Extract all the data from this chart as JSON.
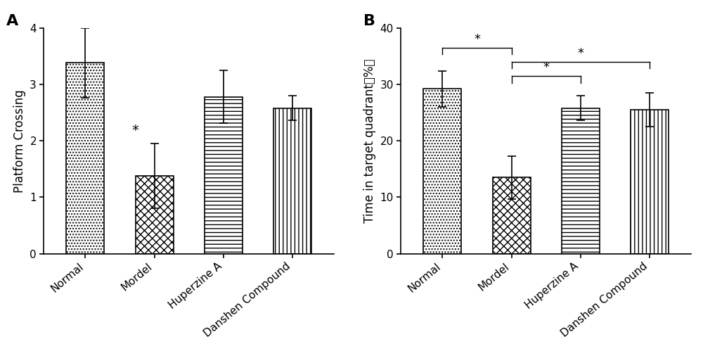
{
  "panel_A": {
    "categories": [
      "Normal",
      "Mordel",
      "Huperzine A",
      "Danshen Compound"
    ],
    "values": [
      3.38,
      1.38,
      2.78,
      2.58
    ],
    "errors": [
      0.62,
      0.57,
      0.47,
      0.22
    ],
    "ylabel": "Platform Crossing",
    "ylim": [
      0,
      4
    ],
    "yticks": [
      0,
      1,
      2,
      3,
      4
    ],
    "sig_bar_index": 1
  },
  "panel_B": {
    "categories": [
      "Normal",
      "Mordel",
      "Huperzine A",
      "Danshen Compound"
    ],
    "values": [
      29.2,
      13.5,
      25.8,
      25.5
    ],
    "errors": [
      3.2,
      3.8,
      2.2,
      3.0
    ],
    "ylabel": "Time in target quadrant（%）",
    "ylim": [
      0,
      40
    ],
    "yticks": [
      0,
      10,
      20,
      30,
      40
    ],
    "sig_pairs": [
      [
        0,
        1,
        36.5,
        "*"
      ],
      [
        1,
        2,
        31.5,
        "*"
      ],
      [
        1,
        3,
        34.0,
        "*"
      ]
    ]
  },
  "hatch_patterns": [
    "....",
    "XXX",
    "---",
    "|||"
  ],
  "bar_width": 0.55,
  "bar_edge_color": "#000000",
  "bar_face_color": "#ffffff",
  "background_color": "#ffffff",
  "tick_fontsize": 11,
  "label_fontsize": 12,
  "panel_label_fontsize": 16
}
